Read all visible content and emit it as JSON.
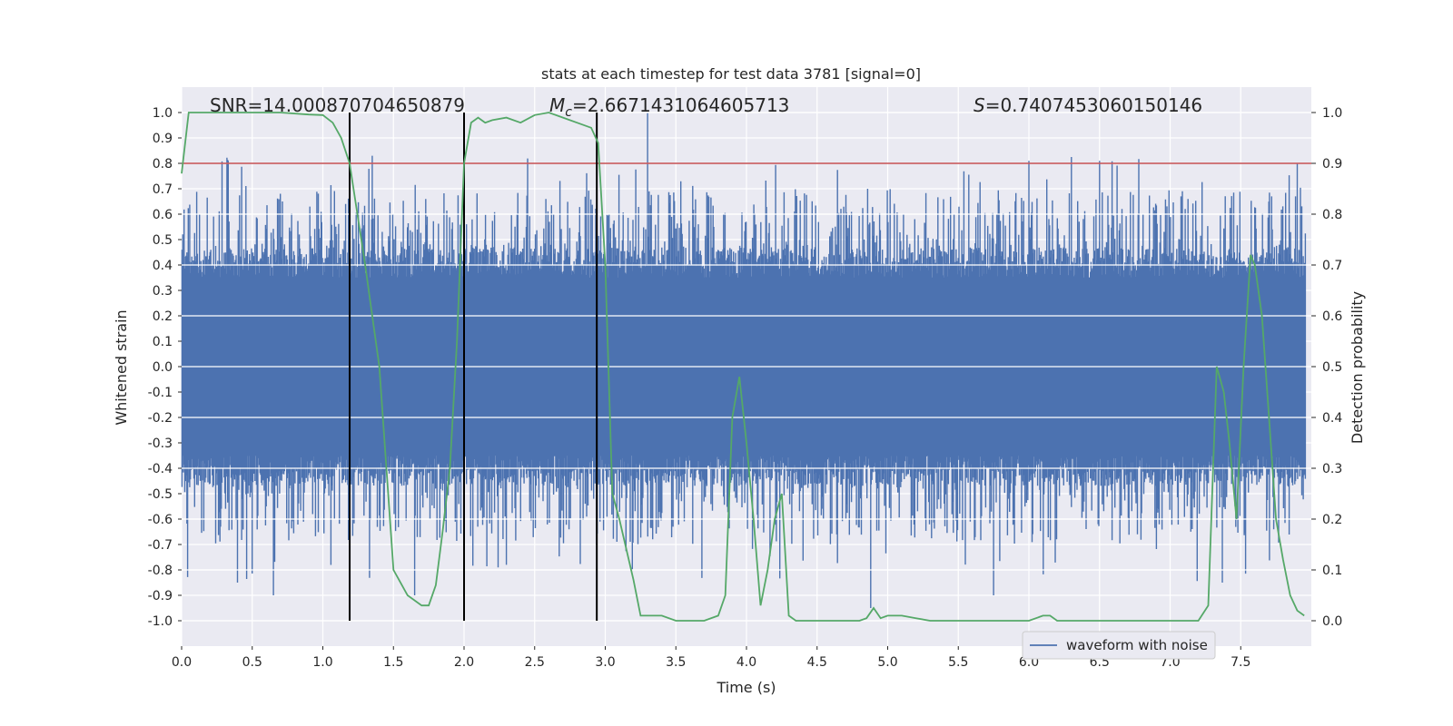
{
  "chart_data": {
    "type": "line",
    "title": "stats at each timestep for test data 3781 [signal=0]",
    "xlabel": "Time (s)",
    "ylabel_left": "Whitened strain",
    "ylabel_right": "Detection probability",
    "xlim": [
      0,
      8.0
    ],
    "ylim_left": [
      -1.1,
      1.1
    ],
    "ylim_right": [
      -0.05,
      1.05
    ],
    "x_ticks": [
      "0.0",
      "0.5",
      "1.0",
      "1.5",
      "2.0",
      "2.5",
      "3.0",
      "3.5",
      "4.0",
      "4.5",
      "5.0",
      "5.5",
      "6.0",
      "6.5",
      "7.0",
      "7.5"
    ],
    "x_tick_values": [
      0,
      0.5,
      1,
      1.5,
      2,
      2.5,
      3,
      3.5,
      4,
      4.5,
      5,
      5.5,
      6,
      6.5,
      7,
      7.5
    ],
    "y_left_ticks": [
      "1.0",
      "0.9",
      "0.8",
      "0.7",
      "0.6",
      "0.5",
      "0.4",
      "0.3",
      "0.2",
      "0.1",
      "0.0",
      "-0.1",
      "-0.2",
      "-0.3",
      "-0.4",
      "-0.5",
      "-0.6",
      "-0.7",
      "-0.8",
      "-0.9",
      "-1.0"
    ],
    "y_left_tick_values": [
      1.0,
      0.9,
      0.8,
      0.7,
      0.6,
      0.5,
      0.4,
      0.3,
      0.2,
      0.1,
      0.0,
      -0.1,
      -0.2,
      -0.3,
      -0.4,
      -0.5,
      -0.6,
      -0.7,
      -0.8,
      -0.9,
      -1.0
    ],
    "y_right_ticks": [
      "1.0",
      "0.9",
      "0.8",
      "0.7",
      "0.6",
      "0.5",
      "0.4",
      "0.3",
      "0.2",
      "0.1",
      "0.0"
    ],
    "y_right_tick_values": [
      1.0,
      0.9,
      0.8,
      0.7,
      0.6,
      0.5,
      0.4,
      0.3,
      0.2,
      0.1,
      0.0
    ],
    "annotations": {
      "snr": "SNR=14.000870704650879",
      "mc_symbol": "M",
      "mc_sub": "c",
      "mc_value": "=2.6671431064605713",
      "s_symbol": "S",
      "s_value": "=0.7407453060150146"
    },
    "legend": {
      "label": "waveform with noise",
      "position": "lower-right"
    },
    "threshold": {
      "value_right": 0.9,
      "color": "#c44e52"
    },
    "vertical_lines_x": [
      1.19,
      2.0,
      2.94
    ],
    "noise": {
      "name": "waveform with noise",
      "color": "#4c72b0",
      "core_amplitude": 0.35,
      "typical_peak": 0.6,
      "max_peak": 1.0,
      "min_trough": -0.9
    },
    "detection_probability": {
      "name": "detection probability",
      "color": "#55a868",
      "x": [
        0.0,
        0.05,
        0.1,
        0.2,
        0.3,
        0.5,
        0.7,
        0.9,
        1.0,
        1.07,
        1.13,
        1.19,
        1.3,
        1.4,
        1.45,
        1.5,
        1.6,
        1.7,
        1.75,
        1.8,
        1.85,
        1.9,
        1.95,
        2.0,
        2.05,
        2.1,
        2.15,
        2.2,
        2.3,
        2.4,
        2.5,
        2.6,
        2.7,
        2.8,
        2.9,
        2.95,
        3.0,
        3.05,
        3.1,
        3.2,
        3.25,
        3.3,
        3.35,
        3.4,
        3.5,
        3.6,
        3.7,
        3.8,
        3.85,
        3.9,
        3.95,
        4.0,
        4.05,
        4.1,
        4.15,
        4.2,
        4.25,
        4.3,
        4.35,
        4.4,
        4.5,
        4.6,
        4.7,
        4.8,
        4.85,
        4.9,
        4.95,
        5.0,
        5.1,
        5.2,
        5.3,
        5.5,
        5.7,
        6.0,
        6.1,
        6.15,
        6.2,
        6.5,
        6.8,
        7.0,
        7.1,
        7.2,
        7.27,
        7.33,
        7.38,
        7.42,
        7.47,
        7.52,
        7.57,
        7.6,
        7.65,
        7.7,
        7.75,
        7.8,
        7.85,
        7.9,
        7.95
      ],
      "y": [
        0.88,
        1.0,
        1.0,
        1.0,
        1.0,
        1.0,
        1.0,
        0.996,
        0.995,
        0.98,
        0.95,
        0.9,
        0.7,
        0.5,
        0.3,
        0.1,
        0.05,
        0.03,
        0.03,
        0.07,
        0.18,
        0.3,
        0.55,
        0.9,
        0.98,
        0.99,
        0.98,
        0.985,
        0.99,
        0.98,
        0.995,
        1.0,
        0.99,
        0.98,
        0.97,
        0.94,
        0.7,
        0.25,
        0.2,
        0.08,
        0.01,
        0.01,
        0.01,
        0.01,
        0.0,
        0.0,
        0.0,
        0.01,
        0.05,
        0.4,
        0.48,
        0.35,
        0.2,
        0.03,
        0.1,
        0.2,
        0.25,
        0.01,
        0.0,
        0.0,
        0.0,
        0.0,
        0.0,
        0.0,
        0.005,
        0.025,
        0.005,
        0.01,
        0.01,
        0.005,
        0.0,
        0.0,
        0.0,
        0.0,
        0.01,
        0.01,
        0.0,
        0.0,
        0.0,
        0.0,
        0.0,
        0.0,
        0.03,
        0.5,
        0.45,
        0.35,
        0.2,
        0.5,
        0.72,
        0.7,
        0.6,
        0.4,
        0.2,
        0.12,
        0.05,
        0.02,
        0.01
      ]
    }
  }
}
